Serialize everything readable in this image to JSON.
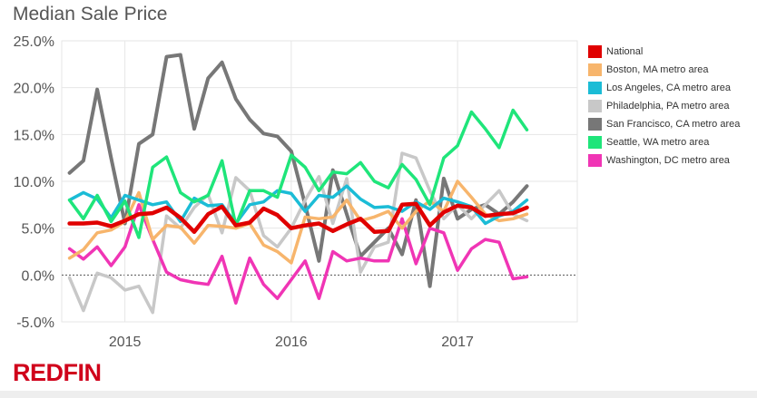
{
  "colors": {
    "background": "#ffffff",
    "grid": "#e6e6e6",
    "tick_text": "#555555",
    "brand": "#d0021b"
  },
  "chart_data": {
    "type": "line",
    "title": "Median Sale Price",
    "xlabel": "",
    "ylabel": "",
    "ylim": [
      -5,
      25
    ],
    "xlim": [
      2014.62,
      2017.72
    ],
    "yticks": [
      25,
      20,
      15,
      10,
      5,
      0,
      -5
    ],
    "ytick_labels": [
      "25.0%",
      "20.0%",
      "15.0%",
      "10.0%",
      "5.0%",
      "0.0%",
      "-5.0%"
    ],
    "xticks": [
      2015,
      2016,
      2017
    ],
    "xtick_labels": [
      "2015",
      "2016",
      "2017"
    ],
    "x_start": 2014.667,
    "x_step": 0.08333,
    "grid": true,
    "legend_position": "right",
    "series": [
      {
        "name": "National",
        "color": "#e00000",
        "width": 4.5,
        "values": [
          5.5,
          5.5,
          5.6,
          5.2,
          5.8,
          6.5,
          6.6,
          7.2,
          6.1,
          4.6,
          6.5,
          7.3,
          5.3,
          5.6,
          7.1,
          6.4,
          5.0,
          5.3,
          5.5,
          4.7,
          5.4,
          6.0,
          4.6,
          4.7,
          7.5,
          7.6,
          5.3,
          6.7,
          7.4,
          7.2,
          6.3,
          6.5,
          6.6,
          7.2
        ]
      },
      {
        "name": "Boston, MA metro area",
        "color": "#f7b56c",
        "width": 3.5,
        "values": [
          1.8,
          2.7,
          4.5,
          4.8,
          5.7,
          8.8,
          3.8,
          5.3,
          5.1,
          3.4,
          5.3,
          5.2,
          5.0,
          5.5,
          3.2,
          2.5,
          1.3,
          6.2,
          6.0,
          6.2,
          8.0,
          5.8,
          6.2,
          6.8,
          5.0,
          6.8,
          7.9,
          6.8,
          10.0,
          8.3,
          6.5,
          5.8,
          6.0,
          6.5
        ]
      },
      {
        "name": "Los Angeles, CA metro area",
        "color": "#1bbcd6",
        "width": 3.5,
        "values": [
          8.0,
          8.8,
          8.1,
          6.1,
          8.5,
          8.0,
          7.5,
          7.8,
          5.7,
          8.2,
          7.4,
          7.5,
          5.5,
          7.5,
          7.8,
          9.0,
          8.7,
          6.8,
          8.5,
          8.3,
          9.5,
          8.1,
          7.2,
          7.3,
          6.8,
          7.8,
          7.0,
          8.2,
          7.8,
          7.3,
          5.5,
          6.3,
          6.8,
          8.0
        ]
      },
      {
        "name": "Philadelphia, PA metro area",
        "color": "#c8c8c8",
        "width": 3.5,
        "values": [
          -0.3,
          -3.8,
          0.2,
          -0.3,
          -1.6,
          -1.2,
          -4.0,
          6.3,
          5.0,
          7.2,
          8.6,
          4.5,
          10.4,
          9.0,
          4.2,
          3.0,
          5.0,
          8.0,
          10.5,
          5.5,
          10.3,
          0.3,
          3.0,
          3.5,
          13.0,
          12.5,
          9.0,
          6.0,
          7.5,
          6.0,
          7.5,
          9.0,
          6.5,
          5.8
        ]
      },
      {
        "name": "San Francisco, CA metro area",
        "color": "#777777",
        "width": 4,
        "values": [
          10.9,
          12.2,
          19.8,
          12.5,
          5.5,
          14.0,
          15.0,
          23.3,
          23.5,
          15.6,
          21.0,
          22.7,
          18.8,
          16.6,
          15.1,
          14.8,
          13.2,
          7.5,
          1.5,
          11.2,
          6.5,
          2.0,
          3.5,
          5.0,
          2.2,
          8.0,
          -1.2,
          10.3,
          6.0,
          7.0,
          7.5,
          6.5,
          7.8,
          9.5
        ]
      },
      {
        "name": "Seattle, WA metro area",
        "color": "#1fe57a",
        "width": 3.5,
        "values": [
          8.0,
          6.0,
          8.5,
          5.7,
          7.9,
          4.0,
          11.5,
          12.6,
          8.8,
          7.8,
          8.5,
          12.2,
          5.3,
          9.0,
          9.0,
          8.3,
          12.8,
          11.5,
          9.0,
          11.0,
          10.8,
          12.0,
          10.0,
          9.3,
          11.8,
          10.2,
          7.5,
          12.5,
          13.8,
          17.4,
          15.6,
          13.6,
          17.6,
          15.5
        ]
      },
      {
        "name": "Washington, DC metro area",
        "color": "#f035b5",
        "width": 3.5,
        "values": [
          2.8,
          1.7,
          3.0,
          1.0,
          3.0,
          7.5,
          3.8,
          0.3,
          -0.5,
          -0.8,
          -1.0,
          2.0,
          -3.0,
          1.8,
          -1.0,
          -2.5,
          -0.5,
          1.5,
          -2.5,
          2.5,
          1.5,
          1.8,
          1.5,
          1.5,
          6.0,
          1.2,
          5.0,
          4.5,
          0.5,
          2.8,
          3.8,
          3.5,
          -0.4,
          -0.2
        ]
      }
    ]
  },
  "brand": {
    "logo_text": "REDFIN"
  }
}
